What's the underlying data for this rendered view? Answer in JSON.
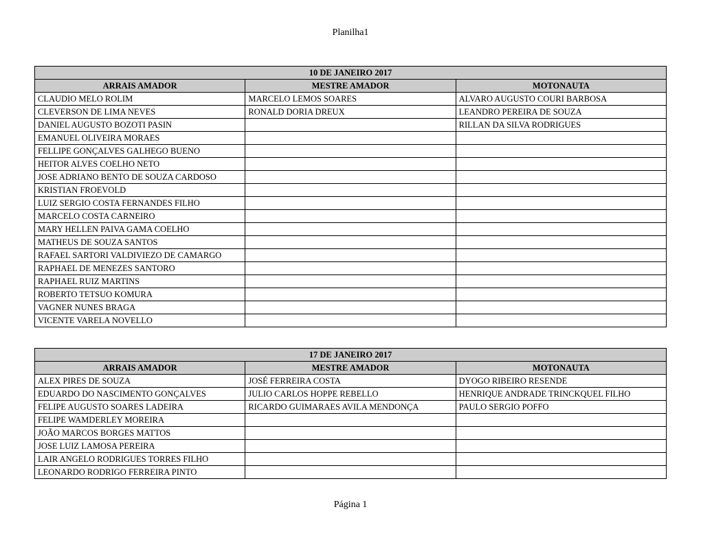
{
  "page_title": "Planilha1",
  "footer": "Página 1",
  "tables": [
    {
      "date": "10 DE JANEIRO 2017",
      "columns": [
        "ARRAIS AMADOR",
        "MESTRE AMADOR",
        "MOTONAUTA"
      ],
      "rows": [
        [
          "CLAUDIO MELO ROLIM",
          "MARCELO LEMOS SOARES",
          "ALVARO AUGUSTO COURI BARBOSA"
        ],
        [
          "CLEVERSON DE LIMA NEVES",
          "RONALD DORIA DREUX",
          "LEANDRO PEREIRA DE SOUZA"
        ],
        [
          "DANIEL AUGUSTO BOZOTI PASIN",
          "",
          "RILLAN DA SILVA RODRIGUES"
        ],
        [
          "EMANUEL OLIVEIRA MORAES",
          "",
          ""
        ],
        [
          "FELLIPE GONÇALVES GALHEGO BUENO",
          "",
          ""
        ],
        [
          "HEITOR ALVES COELHO NETO",
          "",
          ""
        ],
        [
          "JOSE ADRIANO BENTO DE SOUZA CARDOSO",
          "",
          ""
        ],
        [
          "KRISTIAN FROEVOLD",
          "",
          ""
        ],
        [
          "LUIZ SERGIO COSTA FERNANDES FILHO",
          "",
          ""
        ],
        [
          "MARCELO COSTA CARNEIRO",
          "",
          ""
        ],
        [
          "MARY HELLEN PAIVA GAMA COELHO",
          "",
          ""
        ],
        [
          "MATHEUS DE SOUZA SANTOS",
          "",
          ""
        ],
        [
          "RAFAEL SARTORI VALDIVIEZO DE CAMARGO",
          "",
          ""
        ],
        [
          "RAPHAEL DE MENEZES SANTORO",
          "",
          ""
        ],
        [
          "RAPHAEL RUIZ MARTINS",
          "",
          ""
        ],
        [
          "ROBERTO TETSUO KOMURA",
          "",
          ""
        ],
        [
          "VAGNER NUNES BRAGA",
          "",
          ""
        ],
        [
          "VICENTE VARELA NOVELLO",
          "",
          ""
        ]
      ]
    },
    {
      "date": "17 DE JANEIRO 2017",
      "columns": [
        "ARRAIS AMADOR",
        "MESTRE AMADOR",
        "MOTONAUTA"
      ],
      "rows": [
        [
          "ALEX PIRES DE SOUZA",
          "JOSÉ FERREIRA COSTA",
          "DYOGO RIBEIRO RESENDE"
        ],
        [
          "EDUARDO DO NASCIMENTO GONÇALVES",
          "JULIO CARLOS HOPPE REBELLO",
          "HENRIQUE ANDRADE TRINCKQUEL FILHO"
        ],
        [
          "FELIPE AUGUSTO SOARES LADEIRA",
          "RICARDO GUIMARAES AVILA MENDONÇA",
          "PAULO SERGIO POFFO"
        ],
        [
          "FELIPE WAMDERLEY MOREIRA",
          "",
          ""
        ],
        [
          "JOÃO MARCOS BORGES MATTOS",
          "",
          ""
        ],
        [
          "JOSE LUIZ LAMOSA PEREIRA",
          "",
          ""
        ],
        [
          "LAIR ANGELO RODRIGUES TORRES FILHO",
          "",
          ""
        ],
        [
          "LEONARDO RODRIGO FERREIRA PINTO",
          "",
          ""
        ]
      ]
    }
  ]
}
